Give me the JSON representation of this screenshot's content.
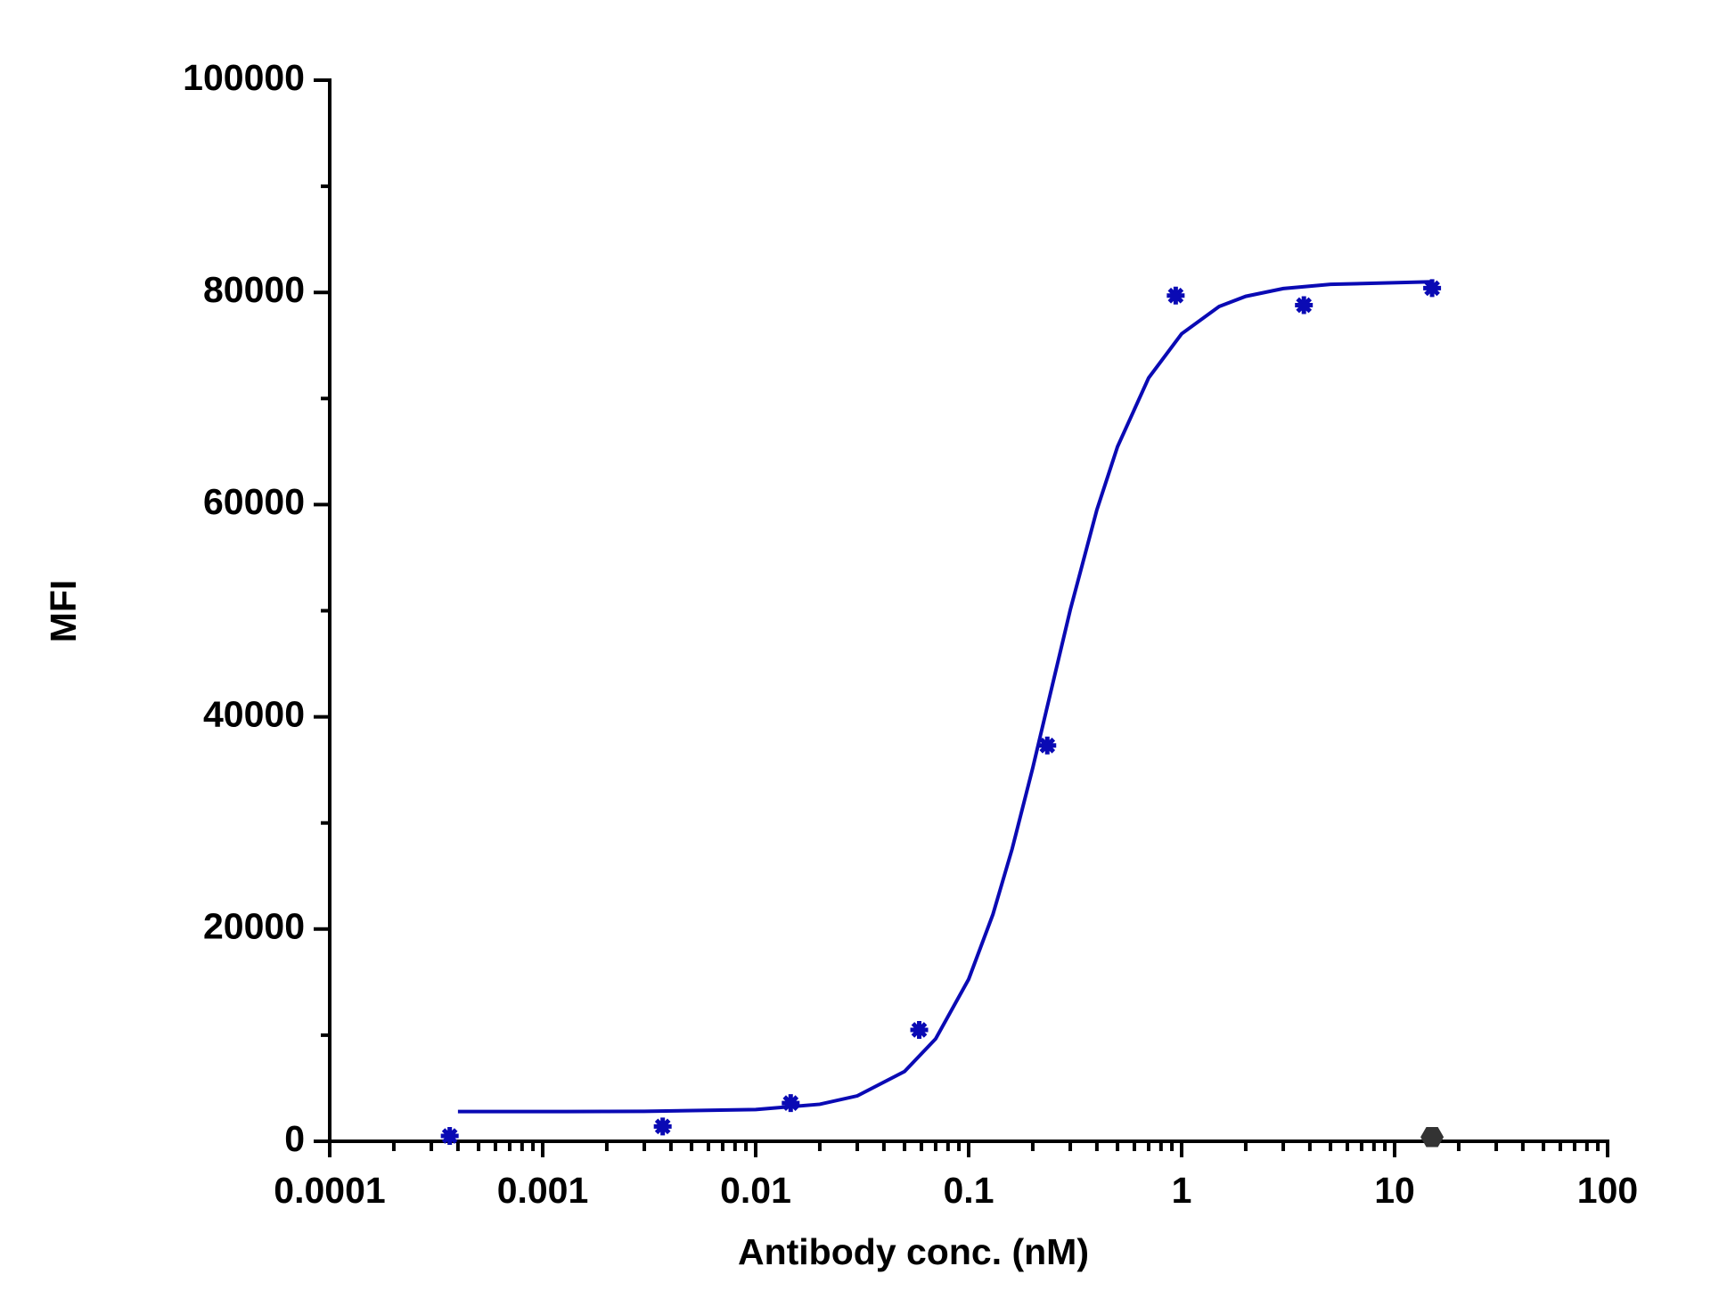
{
  "chart_data": {
    "type": "scatter",
    "x_label": "Antibody conc. (nM)",
    "y_label": "MFI",
    "xscale": "log",
    "xlim": [
      0.0001,
      100
    ],
    "xticks": [
      0.0001,
      0.001,
      0.01,
      0.1,
      1,
      10,
      100
    ],
    "ylim": [
      0,
      100000
    ],
    "yticks": [
      0,
      20000,
      40000,
      60000,
      80000,
      100000
    ],
    "grid": false,
    "series": [
      {
        "mark": "line",
        "color": "#0a0ab4",
        "x": [
          0.0004,
          0.001,
          0.003,
          0.01,
          0.02,
          0.03,
          0.05,
          0.07,
          0.1,
          0.13,
          0.16,
          0.2,
          0.24,
          0.3,
          0.4,
          0.5,
          0.7,
          1,
          1.5,
          2,
          3,
          5,
          15
        ],
        "values": [
          2800,
          2800,
          2820,
          2990,
          3490,
          4280,
          6580,
          9660,
          15270,
          21380,
          27550,
          35190,
          41900,
          50080,
          59510,
          65460,
          71940,
          76100,
          78670,
          79630,
          80360,
          80760,
          81000
        ]
      },
      {
        "mark": "asterisk",
        "color": "#0a0ab4",
        "x": [
          0.000366,
          0.00366,
          0.0146,
          0.0586,
          0.234,
          0.938,
          3.75,
          15
        ],
        "values": [
          500,
          1400,
          3600,
          10500,
          37300,
          79700,
          78800,
          80400
        ]
      },
      {
        "mark": "hexagon",
        "color": "#333333",
        "x": [
          15
        ],
        "values": [
          400
        ]
      }
    ]
  }
}
